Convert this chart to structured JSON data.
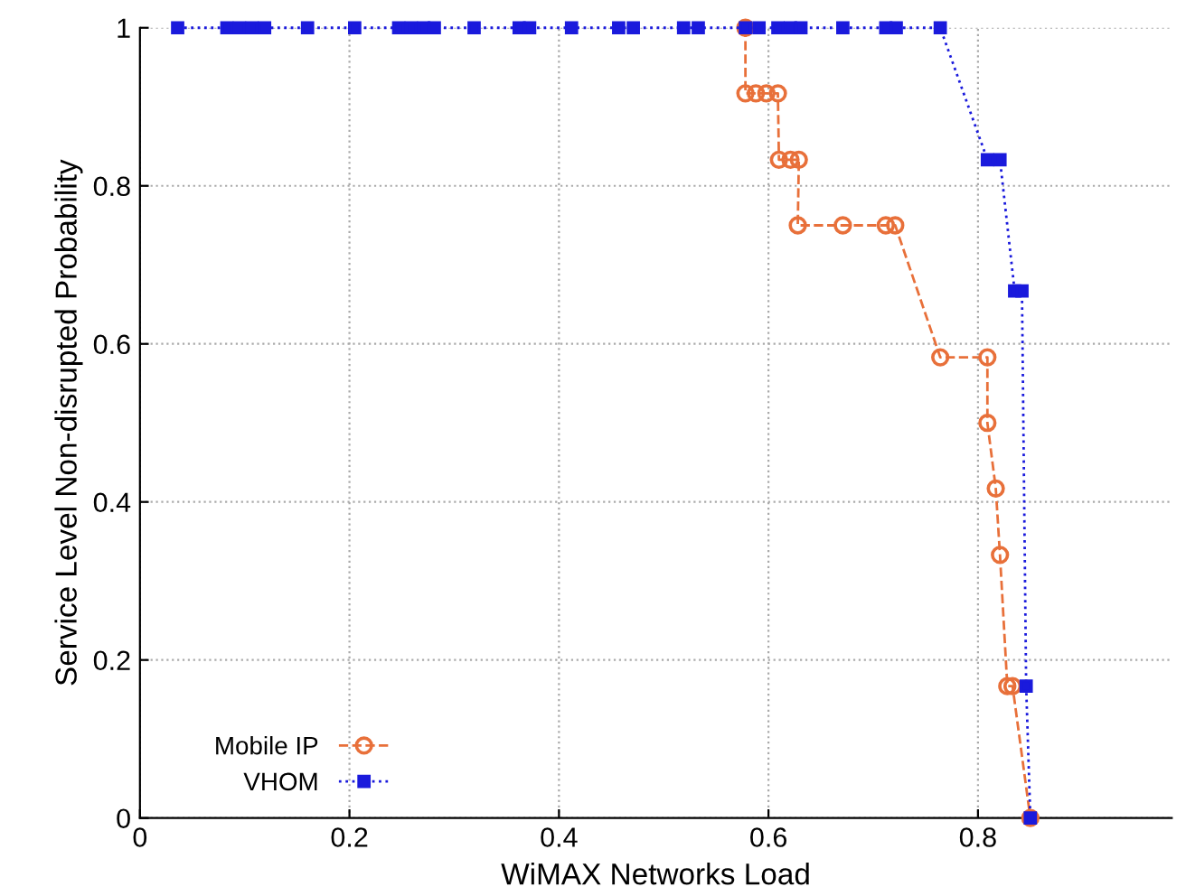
{
  "chart_data": {
    "type": "line",
    "xlabel": "WiMAX Networks Load",
    "ylabel": "Service Level Non-disrupted Probability",
    "xlim": [
      0,
      0.985
    ],
    "ylim": [
      0,
      1
    ],
    "xticks": [
      0,
      0.2,
      0.4,
      0.6,
      0.8
    ],
    "yticks": [
      0,
      0.2,
      0.4,
      0.6,
      0.8,
      1
    ],
    "grid": true,
    "legend": "bottom left",
    "series": [
      {
        "name": "Mobile IP",
        "color": "#e8703a",
        "marker": "circle",
        "line_style": "dashed",
        "x": [
          0.578,
          0.578,
          0.588,
          0.598,
          0.609,
          0.61,
          0.621,
          0.629,
          0.628,
          0.671,
          0.712,
          0.721,
          0.764,
          0.809,
          0.809,
          0.817,
          0.821,
          0.828,
          0.833,
          0.85
        ],
        "values": [
          1,
          0.917,
          0.917,
          0.917,
          0.917,
          0.833,
          0.833,
          0.833,
          0.75,
          0.75,
          0.75,
          0.75,
          0.583,
          0.583,
          0.5,
          0.417,
          0.333,
          0.167,
          0.167,
          0
        ]
      },
      {
        "name": "VHOM",
        "color": "#1a1adc",
        "marker": "square",
        "line_style": "dotted",
        "x": [
          0.036,
          0.083,
          0.095,
          0.107,
          0.119,
          0.16,
          0.205,
          0.247,
          0.259,
          0.271,
          0.281,
          0.319,
          0.362,
          0.372,
          0.412,
          0.457,
          0.471,
          0.519,
          0.533,
          0.578,
          0.591,
          0.609,
          0.621,
          0.631,
          0.671,
          0.712,
          0.722,
          0.764,
          0.809,
          0.821,
          0.835,
          0.842,
          0.846,
          0.85
        ],
        "values": [
          1,
          1,
          1,
          1,
          1,
          1,
          1,
          1,
          1,
          1,
          1,
          1,
          1,
          1,
          1,
          1,
          1,
          1,
          1,
          1,
          1,
          1,
          1,
          1,
          1,
          1,
          1,
          1,
          0.833,
          0.833,
          0.667,
          0.667,
          0.167,
          0
        ]
      }
    ]
  }
}
